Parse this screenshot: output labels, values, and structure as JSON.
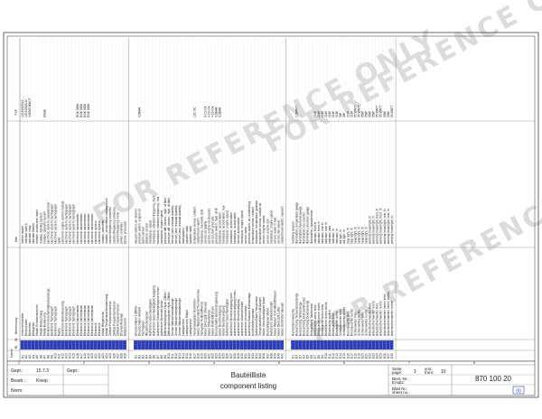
{
  "watermark": "FOR REFERENCE ONLY",
  "columns": {
    "name": "Name",
    "bl": "Bl.",
    "st": "St.",
    "german": "Benennung",
    "english": "title",
    "type": "TYP"
  },
  "groups": [
    {
      "rows": [
        {
          "ref": "A1",
          "st": "",
          "de": "Innenlichtschalter",
          "en": "interior switch",
          "typ": "120100CR42"
        },
        {
          "ref": "A2",
          "st": "",
          "de": "Blinkschalter",
          "en": "indicator switch",
          "typ": "120100MC42"
        },
        {
          "ref": "A3",
          "st": "",
          "de": "Blinkrelais",
          "en": "indicator relay",
          "typ": "449262 WAUT"
        },
        {
          "ref": "A4",
          "st": "",
          "de": "Blinkgeber",
          "en": "indicator flasher",
          "typ": ""
        },
        {
          "ref": "A5",
          "st": "",
          "de": "Modul Scheibenwischer",
          "en": "module, windscreen wiper",
          "typ": ""
        },
        {
          "ref": "A6",
          "st": "",
          "de": "Modul Beleuchtung",
          "en": "module, lighting system",
          "typ": ""
        },
        {
          "ref": "A7",
          "st": "",
          "de": "Modul Bedienung",
          "en": "module, operator system",
          "typ": "Modul"
        },
        {
          "ref": "A8",
          "st": "",
          "de": "Elektronik Geschwindigkeitsanzeige",
          "en": "electronic system, speedometer",
          "typ": ""
        },
        {
          "ref": "A9",
          "st": "",
          "de": "Elektronik Tachograph",
          "en": "electronic system, tachograph",
          "typ": ""
        },
        {
          "ref": "A10",
          "st": "",
          "de": "Elektronik Tachograph",
          "en": "electronic system, tachograph",
          "typ": ""
        },
        {
          "ref": "A11",
          "st": "",
          "de": "Radio",
          "en": "radio",
          "typ": ""
        },
        {
          "ref": "A12",
          "st": "",
          "de": "Elektronik Motorsteuerung",
          "en": "electronic engine control module",
          "typ": ""
        },
        {
          "ref": "A13",
          "st": "",
          "de": "Elektronik Tachograph",
          "en": "electronic system, tachograph",
          "typ": ""
        },
        {
          "ref": "A14",
          "st": "",
          "de": "Elektronik Tachograph",
          "en": "electronic system, tachograph",
          "typ": ""
        },
        {
          "ref": "A15",
          "st": "",
          "de": "Elektronik Tachograph",
          "en": "electronic system, tachograph",
          "typ": ""
        },
        {
          "ref": "A16",
          "st": "",
          "de": "Elektronik Varioretarder",
          "en": "electronic varioretarder",
          "typ": "EGK 9856"
        },
        {
          "ref": "A17",
          "st": "",
          "de": "Elektronik Varioretarder",
          "en": "electronic varioretarder",
          "typ": "EGK 9856"
        },
        {
          "ref": "A18",
          "st": "",
          "de": "Elektronik Varioretarder",
          "en": "electronic varioretarder",
          "typ": "EGK 9856"
        },
        {
          "ref": "A19",
          "st": "",
          "de": "Elektronik Varioretarder",
          "en": "electronic varioretarder",
          "typ": "EGK 9856"
        },
        {
          "ref": "A20",
          "st": "",
          "de": "Elektronik Varioretarder",
          "en": "electronic varioretarder",
          "typ": ""
        },
        {
          "ref": "A21",
          "st": "",
          "de": "Elektronik",
          "en": "electronic system",
          "typ": ""
        },
        {
          "ref": "A22",
          "st": "",
          "de": "Elektronik",
          "en": "electronic system",
          "typ": ""
        },
        {
          "ref": "A23",
          "st": "",
          "de": "Modul Wegstrecke",
          "en": "module, odometer",
          "typ": ""
        },
        {
          "ref": "A24",
          "st": "",
          "de": "Modul Temperaturüberwachung",
          "en": "module, temperature management",
          "typ": ""
        },
        {
          "ref": "A25",
          "st": "",
          "de": "Zählrat Frequenzumsetzer",
          "en": "counter/frequency converter",
          "typ": ""
        },
        {
          "ref": "A26",
          "st": "",
          "de": "Zählrat Frequenzumsetzer",
          "en": "counter/frequency converter",
          "typ": ""
        },
        {
          "ref": "A27",
          "st": "",
          "de": "Zählrat Frequenzmesser",
          "en": "counter/frequency meter",
          "typ": ""
        },
        {
          "ref": "A28",
          "st": "",
          "de": "Drucker/Anzeiger",
          "en": "printer controller",
          "typ": ""
        },
        {
          "ref": "A29",
          "st": "",
          "de": "Bildprozessor",
          "en": "picture processor",
          "typ": ""
        }
      ]
    },
    {
      "rows": [
        {
          "ref": "B1",
          "st": "",
          "de": "Druckschalter/ Lüftfilter",
          "en": "vacuum switch, air cleaner",
          "typ": ""
        },
        {
          "ref": "B2",
          "st": "",
          "de": "Druckschalter Motoröl",
          "en": "pressure switch, engine oil",
          "typ": "0,5BAR"
        },
        {
          "ref": "B3",
          "st": "",
          "de": "Tachogeber",
          "en": "tacho sensor",
          "typ": ""
        },
        {
          "ref": "B4",
          "st": "",
          "de": "Wegstreckengeber",
          "en": "distance sensor",
          "typ": ""
        },
        {
          "ref": "B5",
          "st": "",
          "de": "Aufnehmer Geschwindigkeit",
          "en": "transducer, speed",
          "typ": ""
        },
        {
          "ref": "B6",
          "st": "",
          "de": "Aufnehmer Geschwindigkeit/ Ausgang",
          "en": "transducer, vibration frequency, front",
          "typ": ""
        },
        {
          "ref": "B7",
          "st": "",
          "de": "Aufnehmer Vibrationsfrequenz hinten",
          "en": "transducer, vibration frequency, rear",
          "typ": ""
        },
        {
          "ref": "B8",
          "st": "",
          "de": "Aufnehmer Drehzahl Motor",
          "en": "transducer, engine speed",
          "typ": ""
        },
        {
          "ref": "B9",
          "st": "",
          "de": "Differenzdruckgeber Hydr.-Ölfilter",
          "en": "pressure diff. transm., hydr. oil filter",
          "typ": ""
        },
        {
          "ref": "B10",
          "st": "",
          "de": "Differenzdruckgeber Hydr.-Ölfilter",
          "en": "pressure diff. transm., hydr. oil filter",
          "typ": ""
        },
        {
          "ref": "B11",
          "st": "",
          "de": "Sensor Wasserstandanzeige",
          "en": "sensor, tank residual quantity",
          "typ": ""
        },
        {
          "ref": "B12",
          "st": "",
          "de": "Sensor Wasserstandanzeige",
          "en": "sensor, tank residual quantity",
          "typ": ""
        },
        {
          "ref": "B13",
          "st": "",
          "de": "Sensor Wasserstandanzeige",
          "en": "sensor, tank residual quantity",
          "typ": ""
        },
        {
          "ref": "B14",
          "st": "",
          "de": "Lautsprecher",
          "en": "loudspeaker",
          "typ": ""
        },
        {
          "ref": "B15",
          "st": "",
          "de": "Lautsprecher Radio",
          "en": "speaker radio",
          "typ": ""
        },
        {
          "ref": "B16",
          "st": "",
          "de": "Lautsprecher",
          "en": "speaker radio",
          "typ": ""
        },
        {
          "ref": "B17",
          "st": "",
          "de": "Temperaturgeber Kühlmittel",
          "en": "temperature sensor, coolant",
          "typ": "120, 0C"
        },
        {
          "ref": "B18",
          "st": "",
          "de": "Geber Wasserstand/Trennvorrichter",
          "en": "coolant level switch",
          "typ": ""
        },
        {
          "ref": "B19",
          "st": "",
          "de": "Tankgeber Kraftstoffvorrat",
          "en": "transducer, fuel level, tank",
          "typ": ""
        },
        {
          "ref": "B20",
          "st": "",
          "de": "Geber Drehzahl/ Ölsensor",
          "en": "sensor, oil quality",
          "typ": "0-10 mA"
        },
        {
          "ref": "B21",
          "st": "",
          "de": "Geber Motoröldruck",
          "en": "sensor, engine oil pressure",
          "typ": "4-20 mA"
        },
        {
          "ref": "B22",
          "st": "",
          "de": "Geber Kraftstoff Druck",
          "en": "sensor, fuel pressure",
          "typ": "4-20 mA"
        },
        {
          "ref": "B23",
          "st": "",
          "de": "Druckschalter Bordnetzspannung",
          "en": "pressure switch, hydr. oil flt",
          "typ": "0,5BAR"
        },
        {
          "ref": "B24",
          "st": "",
          "de": "Geber Beschleunigung",
          "en": "transducer, acceleration",
          "typ": "0,5BAR"
        },
        {
          "ref": "B25",
          "st": "",
          "de": "Geber Beschleunigung",
          "en": "transducer, acceleration, rear",
          "typ": ""
        },
        {
          "ref": "B26",
          "st": "",
          "de": "Aufnehmer Geschwindigkeit",
          "en": "transducer, engine speed",
          "typ": ""
        },
        {
          "ref": "B27",
          "st": "",
          "de": "Aufnehmer Beschleunigung vorn",
          "en": "transducer, acceleration",
          "typ": ""
        },
        {
          "ref": "B28",
          "st": "",
          "de": "Aufnehmer Beschleunigung hinten",
          "en": "transducer, acceleration",
          "typ": ""
        },
        {
          "ref": "B29",
          "st": "",
          "de": "Aufnehmer Beschleunigung",
          "en": "sensor, acceleration",
          "typ": ""
        },
        {
          "ref": "B30",
          "st": "",
          "de": "Aufnehmer Motordrehzahl",
          "en": "transducer, engine speed",
          "typ": ""
        },
        {
          "ref": "B31",
          "st": "",
          "de": "Aufnehmer Verschleiss",
          "en": "sensor, wear",
          "typ": ""
        },
        {
          "ref": "B32",
          "st": "",
          "de": "Aufnehmer/Vakuum Klimaanlage",
          "en": "pressure switch, air conditioning",
          "typ": ""
        },
        {
          "ref": "B33",
          "st": "",
          "de": "Kühlmitteltemperatur",
          "en": "temperature sensor, coolant",
          "typ": ""
        },
        {
          "ref": "B34",
          "st": "",
          "de": "Aufnehmer/Geber Temperatur",
          "en": "transducer, temperature gearbox",
          "typ": ""
        },
        {
          "ref": "B35",
          "st": "",
          "de": "Temperaturfühler Luft Aussen",
          "en": "temperature sensor, outside air",
          "typ": ""
        },
        {
          "ref": "B36",
          "st": "",
          "de": "Geber Geschwindigkeit Motor",
          "en": "sensor, engine speed",
          "typ": ""
        },
        {
          "ref": "B37",
          "st": "",
          "de": "Drehzahlgeber Motor",
          "en": "sensor, engine rpm",
          "typ": ""
        },
        {
          "ref": "B38",
          "st": "",
          "de": "Aufnehmer Motordrehzahl",
          "en": "transducer, engine speed",
          "typ": ""
        },
        {
          "ref": "B39",
          "st": "",
          "de": "Geber Wasser im Kraftstoff Diesel",
          "en": "sensor, water in fuel",
          "typ": ""
        },
        {
          "ref": "B40",
          "st": "",
          "de": "Geber Drehzahl Lüfter",
          "en": "sensor, fan speed",
          "typ": ""
        },
        {
          "ref": "B41",
          "st": "",
          "de": "Geber Kühlmittel Vakuum",
          "en": "coolant level switch, vacuum",
          "typ": ""
        }
      ]
    },
    {
      "rows": [
        {
          "ref": "E1",
          "st": "",
          "de": "Rundumkennleuchte",
          "en": "revolving beacon",
          "typ": ""
        },
        {
          "ref": "E2",
          "st": "",
          "de": "Beleuchtung Temperaturanzeige",
          "en": "illumination, temperature gauge",
          "typ": "2,8WATT"
        },
        {
          "ref": "E3",
          "st": "",
          "de": "Beleuchtung Tankanzeige",
          "en": "illumination, fuel level gauge",
          "typ": ""
        },
        {
          "ref": "E4",
          "st": "",
          "de": "Beleuchtung Drehzahlmesser",
          "en": "illumination, rev counter",
          "typ": ""
        },
        {
          "ref": "E5",
          "st": "",
          "de": "Beleuchtung Druckanzeige",
          "en": "illumination, pressure gauge",
          "typ": ""
        },
        {
          "ref": "E6",
          "st": "",
          "de": "Beleuchtung Tachometer",
          "en": "illumination, speedometer",
          "typ": ""
        },
        {
          "ref": "E7",
          "st": "",
          "de": "Blinkleuchte vorne links",
          "en": "indicator, front lh",
          "typ": "21W"
        },
        {
          "ref": "E8",
          "st": "",
          "de": "Blinkleuchte vorne rechts",
          "en": "indicator, front rh",
          "typ": "21W"
        },
        {
          "ref": "E9",
          "st": "",
          "de": "Blinkleuchte hinten links",
          "en": "indicator, rear lh",
          "typ": "21W"
        },
        {
          "ref": "E10",
          "st": "",
          "de": "Blinkleuchte hinten rechts",
          "en": "indicator, rear rh",
          "typ": "21W"
        },
        {
          "ref": "E11",
          "st": "",
          "de": "Blinkleuchte seitlich",
          "en": "indicator, side",
          "typ": "21W"
        },
        {
          "ref": "E12",
          "st": "",
          "de": "Blinkleuchte links",
          "en": "indicator, lh",
          "typ": "21W"
        },
        {
          "ref": "E13",
          "st": "",
          "de": "Blinkleuchte rechts",
          "en": "indicator, rh",
          "typ": "21W"
        },
        {
          "ref": "E14",
          "st": "",
          "de": "Schlussleuchte links",
          "en": "tail light, lh",
          "typ": "5W"
        },
        {
          "ref": "E15",
          "st": "",
          "de": "Schlussleuchte rechts",
          "en": "tail light, rh",
          "typ": "5W"
        },
        {
          "ref": "E16",
          "st": "",
          "de": "Bremsleuchte links",
          "en": "stop light, lh",
          "typ": "21W"
        },
        {
          "ref": "E17",
          "st": "",
          "de": "Bremsleuchte rechts",
          "en": "stop light, rh",
          "typ": "21W"
        },
        {
          "ref": "E18",
          "st": "",
          "de": "Scheinwerfer links",
          "en": "head light, lh",
          "typ": "55 WATT"
        },
        {
          "ref": "E19",
          "st": "",
          "de": "Scheinwerfer rechts",
          "en": "head light, rh",
          "typ": "55 WATT"
        },
        {
          "ref": "E20",
          "st": "",
          "de": "Scheinwerfer links",
          "en": "head light, lh",
          "typ": "55W"
        },
        {
          "ref": "E21",
          "st": "",
          "de": "Scheinwerfer rechts",
          "en": "head light, rh",
          "typ": "55W"
        },
        {
          "ref": "E22",
          "st": "",
          "de": "Arbeitsscheinwerfer links",
          "en": "working head light, lh",
          "typ": "55W"
        },
        {
          "ref": "E23",
          "st": "",
          "de": "Arbeitsscheinwerfer rechts",
          "en": "working head light, rh",
          "typ": "55W"
        },
        {
          "ref": "E24",
          "st": "",
          "de": "Arbeitsscheinwerfer links",
          "en": "working head light, front, lh",
          "typ": "55 WATT"
        },
        {
          "ref": "E25",
          "st": "",
          "de": "Arbeitsscheinwerfer rechts",
          "en": "working head light, front, rh",
          "typ": "55 WATT"
        },
        {
          "ref": "E26",
          "st": "",
          "de": "Arbeitsscheinwerfer hinten links",
          "en": "working head light, rear, lh",
          "typ": "55W"
        },
        {
          "ref": "E27",
          "st": "",
          "de": "Arbeitsscheinwerfer hinten rechts",
          "en": "working head light, rear, rh",
          "typ": "55W"
        },
        {
          "ref": "E28",
          "st": "",
          "de": "Arbeitsscheinwerfer rechts",
          "en": "working head light, rh",
          "typ": "55 WATT"
        }
      ]
    }
  ],
  "title_block": {
    "gepr_label": "Gepr.:",
    "gepr_value": "15.7.3",
    "bearb_label": "Bearb.:",
    "bearb_value": "Kneip",
    "gepr2_label": "Gepr.:",
    "norm_label": "Norm:",
    "title_de": "Bauteilliste",
    "title_en": "component listing",
    "seite_label": "Seite:",
    "page_label": "page:",
    "page_value": "1",
    "von_label": "von:",
    "from_label": "from:",
    "von_value": "10",
    "bestnr_label": "Best.-Nr.:",
    "order_label": "Ersatz:",
    "drawing_no": "870 100 20",
    "blatt_label": "Blatt Nr.:",
    "sheet_label": "sheet no.:",
    "rev": "00",
    "bottom_row_labels": [
      "1",
      "2",
      "3",
      "4",
      "5",
      "6",
      "7",
      "8"
    ]
  }
}
